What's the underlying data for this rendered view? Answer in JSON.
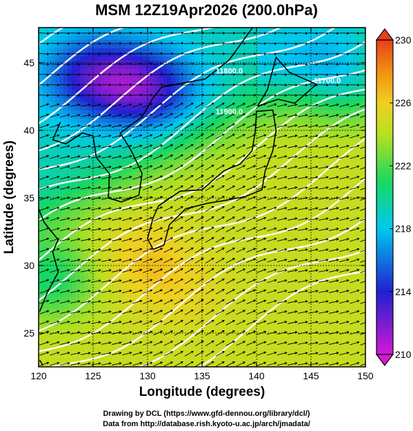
{
  "title": "MSM 12Z19Apr2026 (200.0hPa)",
  "credits": {
    "line1": "Drawing by DCL (https://www.gfd-dennou.org/library/dcl/)",
    "line2": "Data from http://database.rish.kyoto-u.ac.jp/arch/jmadata/"
  },
  "chart_data": {
    "type": "heatmap",
    "title": "MSM 12Z19Apr2026 (200.0hPa)",
    "xlabel": "Longitude (degrees)",
    "ylabel": "Latitude  (degrees)",
    "xlim": [
      120,
      150
    ],
    "ylim": [
      22.5,
      47.6
    ],
    "x_ticks": [
      "120",
      "125",
      "130",
      "135",
      "140",
      "145",
      "150"
    ],
    "y_ticks": [
      "25",
      "30",
      "35",
      "40",
      "45"
    ],
    "x_tick_values": [
      120,
      125,
      130,
      135,
      140,
      145,
      150
    ],
    "y_tick_values": [
      25,
      30,
      35,
      40,
      45
    ],
    "grid": true,
    "colorbar": {
      "min": 210,
      "max": 230,
      "ticks": [
        "230",
        "226",
        "222",
        "218",
        "214",
        "210"
      ],
      "tick_values": [
        230,
        226,
        222,
        218,
        214,
        210
      ],
      "colors": [
        "#d21ad2",
        "#2020d0",
        "#00c8f0",
        "#18d860",
        "#b8e020",
        "#f0d020",
        "#f09010",
        "#e84018"
      ],
      "color_stops": [
        210,
        214,
        218,
        221,
        224,
        226,
        228,
        230
      ]
    },
    "contour_labels": [
      {
        "text": "11800.0",
        "lon": 137.5,
        "lat": 44.2
      },
      {
        "text": "11900.0",
        "lon": 137.5,
        "lat": 41.2
      },
      {
        "text": "11700.0",
        "lon": 146.5,
        "lat": 43.5
      }
    ],
    "field_features": [
      {
        "name": "low",
        "lon": 130,
        "lat": 43,
        "value": 211
      },
      {
        "name": "low",
        "lon": 125,
        "lat": 44,
        "value": 212
      },
      {
        "name": "low",
        "lon": 148,
        "lat": 43.5,
        "value": 216
      },
      {
        "name": "low",
        "lon": 121,
        "lat": 29,
        "value": 216
      },
      {
        "name": "high",
        "lon": 129.5,
        "lat": 30.5,
        "value": 228
      },
      {
        "name": "high",
        "lon": 133,
        "lat": 28,
        "value": 226
      }
    ]
  }
}
